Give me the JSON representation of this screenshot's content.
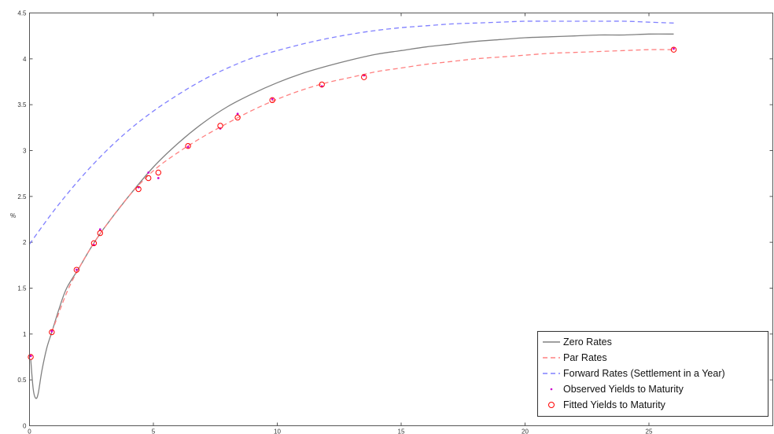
{
  "chart_data": {
    "type": "line",
    "title": "",
    "xlabel": "",
    "ylabel": "%",
    "xlim": [
      0,
      30
    ],
    "ylim": [
      0,
      4.5
    ],
    "x_ticks": [
      0,
      5,
      10,
      15,
      20,
      25
    ],
    "y_ticks": [
      0,
      0.5,
      1,
      1.5,
      2,
      2.5,
      3,
      3.5,
      4,
      4.5
    ],
    "x_tick_labels": [
      "0",
      "5",
      "10",
      "15",
      "20",
      "25"
    ],
    "y_tick_labels": [
      "0",
      "0.5",
      "1",
      "1.5",
      "2",
      "2.5",
      "3",
      "3.5",
      "4",
      "4.5"
    ],
    "grid": false,
    "legend_position": "bottom-right",
    "series": [
      {
        "name": "Zero Rates",
        "style": "solid",
        "color": "#808080",
        "x": [
          0.05,
          0.15,
          0.25,
          0.35,
          0.5,
          0.7,
          0.9,
          1.2,
          1.5,
          2,
          2.5,
          3,
          4,
          5,
          6,
          7,
          8,
          9,
          10,
          11,
          12,
          13,
          14,
          15,
          16,
          17,
          18,
          19,
          20,
          21,
          22,
          23,
          24,
          25,
          26
        ],
        "y": [
          0.72,
          0.4,
          0.3,
          0.35,
          0.6,
          0.85,
          1.02,
          1.28,
          1.5,
          1.72,
          1.95,
          2.15,
          2.5,
          2.82,
          3.08,
          3.3,
          3.48,
          3.62,
          3.74,
          3.84,
          3.92,
          3.99,
          4.05,
          4.09,
          4.13,
          4.16,
          4.19,
          4.21,
          4.23,
          4.24,
          4.25,
          4.26,
          4.26,
          4.27,
          4.27
        ]
      },
      {
        "name": "Par Rates",
        "style": "dashed",
        "color": "#ff8080",
        "x": [
          0.9,
          1.5,
          2,
          2.5,
          3,
          4,
          5,
          6,
          7,
          8,
          9,
          10,
          11,
          12,
          13,
          14,
          15,
          16,
          17,
          18,
          19,
          20,
          21,
          22,
          23,
          24,
          25,
          26
        ],
        "y": [
          1.02,
          1.45,
          1.72,
          1.95,
          2.15,
          2.5,
          2.78,
          2.98,
          3.15,
          3.3,
          3.44,
          3.56,
          3.66,
          3.74,
          3.8,
          3.86,
          3.9,
          3.94,
          3.97,
          4.0,
          4.02,
          4.04,
          4.06,
          4.07,
          4.08,
          4.09,
          4.1,
          4.1
        ]
      },
      {
        "name": "Forward Rates (Settlement in a Year)",
        "style": "dashed",
        "color": "#8080ff",
        "x": [
          0,
          1,
          2,
          3,
          4,
          5,
          6,
          7,
          8,
          9,
          10,
          11,
          12,
          13,
          14,
          15,
          16,
          17,
          18,
          19,
          20,
          21,
          22,
          23,
          24,
          25,
          26
        ],
        "y": [
          1.98,
          2.35,
          2.68,
          2.97,
          3.22,
          3.43,
          3.61,
          3.77,
          3.9,
          4.01,
          4.09,
          4.16,
          4.22,
          4.27,
          4.31,
          4.34,
          4.36,
          4.38,
          4.39,
          4.4,
          4.41,
          4.41,
          4.41,
          4.41,
          4.41,
          4.4,
          4.39
        ]
      },
      {
        "name": "Observed Yields to Maturity",
        "style": "markers-dot",
        "color": "#cc00cc",
        "x": [
          0.05,
          0.9,
          1.9,
          2.6,
          2.85,
          4.4,
          4.8,
          5.2,
          6.4,
          7.7,
          8.4,
          9.8,
          11.8,
          13.5,
          26
        ],
        "y": [
          0.76,
          1.03,
          1.7,
          1.97,
          2.14,
          2.6,
          2.76,
          2.7,
          3.04,
          3.24,
          3.4,
          3.56,
          3.7,
          3.82,
          4.11
        ]
      },
      {
        "name": "Fitted Yields to Maturity",
        "style": "markers-circle",
        "color": "#ff0000",
        "x": [
          0.05,
          0.9,
          1.9,
          2.6,
          2.85,
          4.4,
          4.8,
          5.2,
          6.4,
          7.7,
          8.4,
          9.8,
          11.8,
          13.5,
          26
        ],
        "y": [
          0.75,
          1.02,
          1.7,
          1.99,
          2.1,
          2.58,
          2.7,
          2.76,
          3.05,
          3.27,
          3.36,
          3.55,
          3.72,
          3.8,
          4.1
        ]
      }
    ]
  }
}
